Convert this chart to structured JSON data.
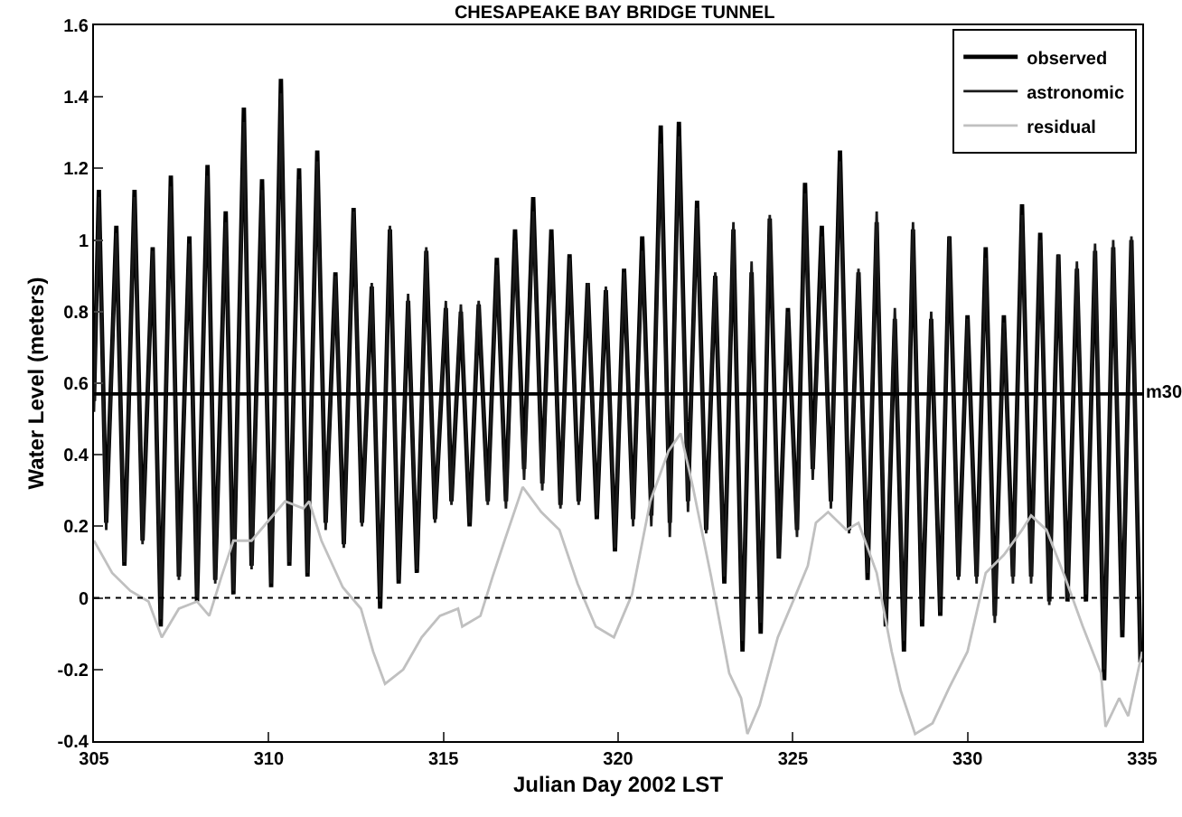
{
  "chart_data": {
    "type": "line",
    "title": "CHESAPEAKE BAY BRIDGE TUNNEL",
    "xlabel": "Julian Day 2002 LST",
    "ylabel": "Water Level (meters)",
    "x": [
      305.0,
      305.14,
      305.35,
      305.64,
      305.87,
      306.16,
      306.39,
      306.68,
      306.91,
      307.2,
      307.43,
      307.73,
      307.95,
      308.25,
      308.47,
      308.77,
      308.99,
      309.29,
      309.51,
      309.81,
      310.07,
      310.35,
      310.59,
      310.87,
      311.11,
      311.39,
      311.63,
      311.91,
      312.15,
      312.43,
      312.67,
      312.95,
      313.19,
      313.47,
      313.72,
      313.99,
      314.24,
      314.51,
      314.76,
      315.07,
      315.23,
      315.5,
      315.75,
      316.01,
      316.27,
      316.53,
      316.79,
      317.05,
      317.31,
      317.57,
      317.83,
      318.09,
      318.35,
      318.61,
      318.87,
      319.13,
      319.39,
      319.65,
      319.91,
      320.17,
      320.43,
      320.69,
      320.95,
      321.22,
      321.48,
      321.74,
      322.0,
      322.26,
      322.52,
      322.78,
      323.04,
      323.3,
      323.56,
      323.82,
      324.08,
      324.34,
      324.6,
      324.86,
      325.12,
      325.35,
      325.57,
      325.83,
      326.09,
      326.35,
      326.61,
      326.88,
      327.14,
      327.4,
      327.66,
      327.92,
      328.18,
      328.44,
      328.7,
      328.96,
      329.22,
      329.48,
      329.74,
      330.0,
      330.26,
      330.52,
      330.78,
      331.04,
      331.3,
      331.56,
      331.82,
      332.08,
      332.34,
      332.6,
      332.86,
      333.13,
      333.39,
      333.65,
      333.91,
      334.17,
      334.43,
      334.69,
      334.95
    ],
    "series": [
      {
        "name": "observed",
        "color": "#000000",
        "values": [
          0.55,
          1.14,
          0.21,
          1.04,
          0.09,
          1.14,
          0.16,
          0.98,
          -0.08,
          1.18,
          0.06,
          1.01,
          -0.01,
          1.21,
          0.05,
          1.08,
          0.01,
          1.37,
          0.09,
          1.17,
          0.03,
          1.45,
          0.09,
          1.2,
          0.06,
          1.25,
          0.21,
          0.91,
          0.15,
          1.09,
          0.21,
          0.87,
          -0.03,
          1.03,
          0.04,
          0.83,
          0.07,
          0.97,
          0.22,
          0.81,
          0.27,
          0.8,
          0.2,
          0.82,
          0.27,
          0.95,
          0.27,
          1.03,
          0.36,
          1.12,
          0.32,
          1.03,
          0.26,
          0.96,
          0.27,
          0.88,
          0.22,
          0.86,
          0.13,
          0.92,
          0.22,
          1.01,
          0.23,
          1.32,
          0.21,
          1.33,
          0.27,
          1.11,
          0.19,
          0.9,
          0.04,
          1.03,
          -0.15,
          0.91,
          -0.1,
          1.06,
          0.11,
          0.81,
          0.19,
          1.16,
          0.36,
          1.04,
          0.27,
          1.25,
          0.19,
          0.91,
          0.05,
          1.05,
          -0.08,
          0.78,
          -0.15,
          1.03,
          -0.08,
          0.78,
          -0.05,
          1.01,
          0.06,
          0.79,
          0.06,
          0.98,
          -0.05,
          0.79,
          0.06,
          1.1,
          0.06,
          1.02,
          -0.01,
          0.96,
          -0.01,
          0.92,
          -0.01,
          0.97,
          -0.23,
          0.98,
          -0.11,
          1.0,
          -0.18
        ]
      },
      {
        "name": "astronomic",
        "color": "#1a1a1a",
        "values": [
          0.52,
          1.12,
          0.19,
          1.02,
          0.1,
          1.12,
          0.15,
          0.97,
          -0.06,
          1.15,
          0.05,
          0.99,
          0.0,
          1.18,
          0.04,
          1.05,
          0.02,
          1.33,
          0.08,
          1.14,
          0.04,
          1.41,
          0.1,
          1.17,
          0.07,
          1.22,
          0.19,
          0.9,
          0.14,
          1.08,
          0.2,
          0.88,
          -0.01,
          1.04,
          0.05,
          0.85,
          0.08,
          0.98,
          0.21,
          0.83,
          0.26,
          0.82,
          0.21,
          0.83,
          0.26,
          0.93,
          0.25,
          1.0,
          0.33,
          1.08,
          0.3,
          1.0,
          0.25,
          0.95,
          0.26,
          0.88,
          0.23,
          0.87,
          0.14,
          0.91,
          0.2,
          0.97,
          0.2,
          1.27,
          0.17,
          1.29,
          0.24,
          1.09,
          0.18,
          0.91,
          0.06,
          1.05,
          -0.12,
          0.94,
          -0.07,
          1.07,
          0.11,
          0.8,
          0.17,
          1.13,
          0.33,
          1.01,
          0.25,
          1.22,
          0.18,
          0.92,
          0.07,
          1.08,
          -0.05,
          0.81,
          -0.12,
          1.05,
          -0.06,
          0.8,
          -0.04,
          1.01,
          0.05,
          0.78,
          0.04,
          0.95,
          -0.07,
          0.77,
          0.04,
          1.07,
          0.04,
          1.0,
          -0.02,
          0.96,
          0.0,
          0.94,
          0.01,
          0.99,
          -0.2,
          1.0,
          -0.09,
          1.01,
          -0.16
        ]
      },
      {
        "name": "residual",
        "color": "#c0c0c0",
        "x": [
          305.0,
          305.52,
          306.04,
          306.56,
          306.94,
          307.43,
          307.95,
          308.3,
          308.65,
          308.99,
          309.51,
          310.03,
          310.47,
          310.99,
          311.16,
          311.51,
          312.12,
          312.64,
          312.99,
          313.33,
          313.85,
          314.38,
          314.9,
          315.42,
          315.54,
          316.06,
          316.41,
          316.75,
          317.27,
          317.8,
          318.32,
          318.84,
          319.36,
          319.88,
          320.4,
          320.92,
          321.44,
          321.79,
          322.14,
          322.66,
          323.18,
          323.52,
          323.7,
          324.05,
          324.57,
          325.09,
          325.43,
          325.66,
          326.01,
          326.53,
          326.88,
          327.4,
          327.83,
          328.09,
          328.5,
          329.0,
          329.48,
          330.0,
          330.52,
          331.04,
          331.56,
          331.82,
          332.26,
          332.78,
          333.3,
          333.82,
          333.95,
          334.34,
          334.6,
          335.0
        ],
        "values": [
          0.16,
          0.07,
          0.02,
          -0.01,
          -0.11,
          -0.03,
          -0.01,
          -0.05,
          0.06,
          0.16,
          0.16,
          0.22,
          0.27,
          0.25,
          0.27,
          0.16,
          0.03,
          -0.03,
          -0.15,
          -0.24,
          -0.2,
          -0.11,
          -0.05,
          -0.03,
          -0.08,
          -0.05,
          0.06,
          0.16,
          0.31,
          0.24,
          0.19,
          0.04,
          -0.08,
          -0.11,
          0.01,
          0.27,
          0.41,
          0.46,
          0.31,
          0.06,
          -0.21,
          -0.28,
          -0.38,
          -0.3,
          -0.11,
          0.01,
          0.09,
          0.21,
          0.24,
          0.19,
          0.21,
          0.07,
          -0.15,
          -0.26,
          -0.38,
          -0.35,
          -0.25,
          -0.15,
          0.07,
          0.12,
          0.19,
          0.23,
          0.19,
          0.06,
          -0.08,
          -0.21,
          -0.36,
          -0.28,
          -0.33,
          -0.15
        ]
      }
    ],
    "xlim": [
      305,
      335
    ],
    "xticks": [
      305,
      310,
      315,
      320,
      325,
      330,
      335
    ],
    "ylim": [
      -0.4,
      1.6
    ],
    "yticks": [
      -0.4,
      -0.2,
      0,
      0.2,
      0.4,
      0.6,
      0.8,
      1,
      1.2,
      1.4,
      1.6
    ],
    "ref_lines": [
      {
        "axis": "y",
        "value": 0.57,
        "label": "m30",
        "color": "#000000",
        "line_style": "solid"
      },
      {
        "axis": "y",
        "value": 0,
        "color": "#000000",
        "line_style": "dotted"
      }
    ],
    "grid": false,
    "legend": "top right",
    "marker": "none",
    "line_style": "solid"
  }
}
